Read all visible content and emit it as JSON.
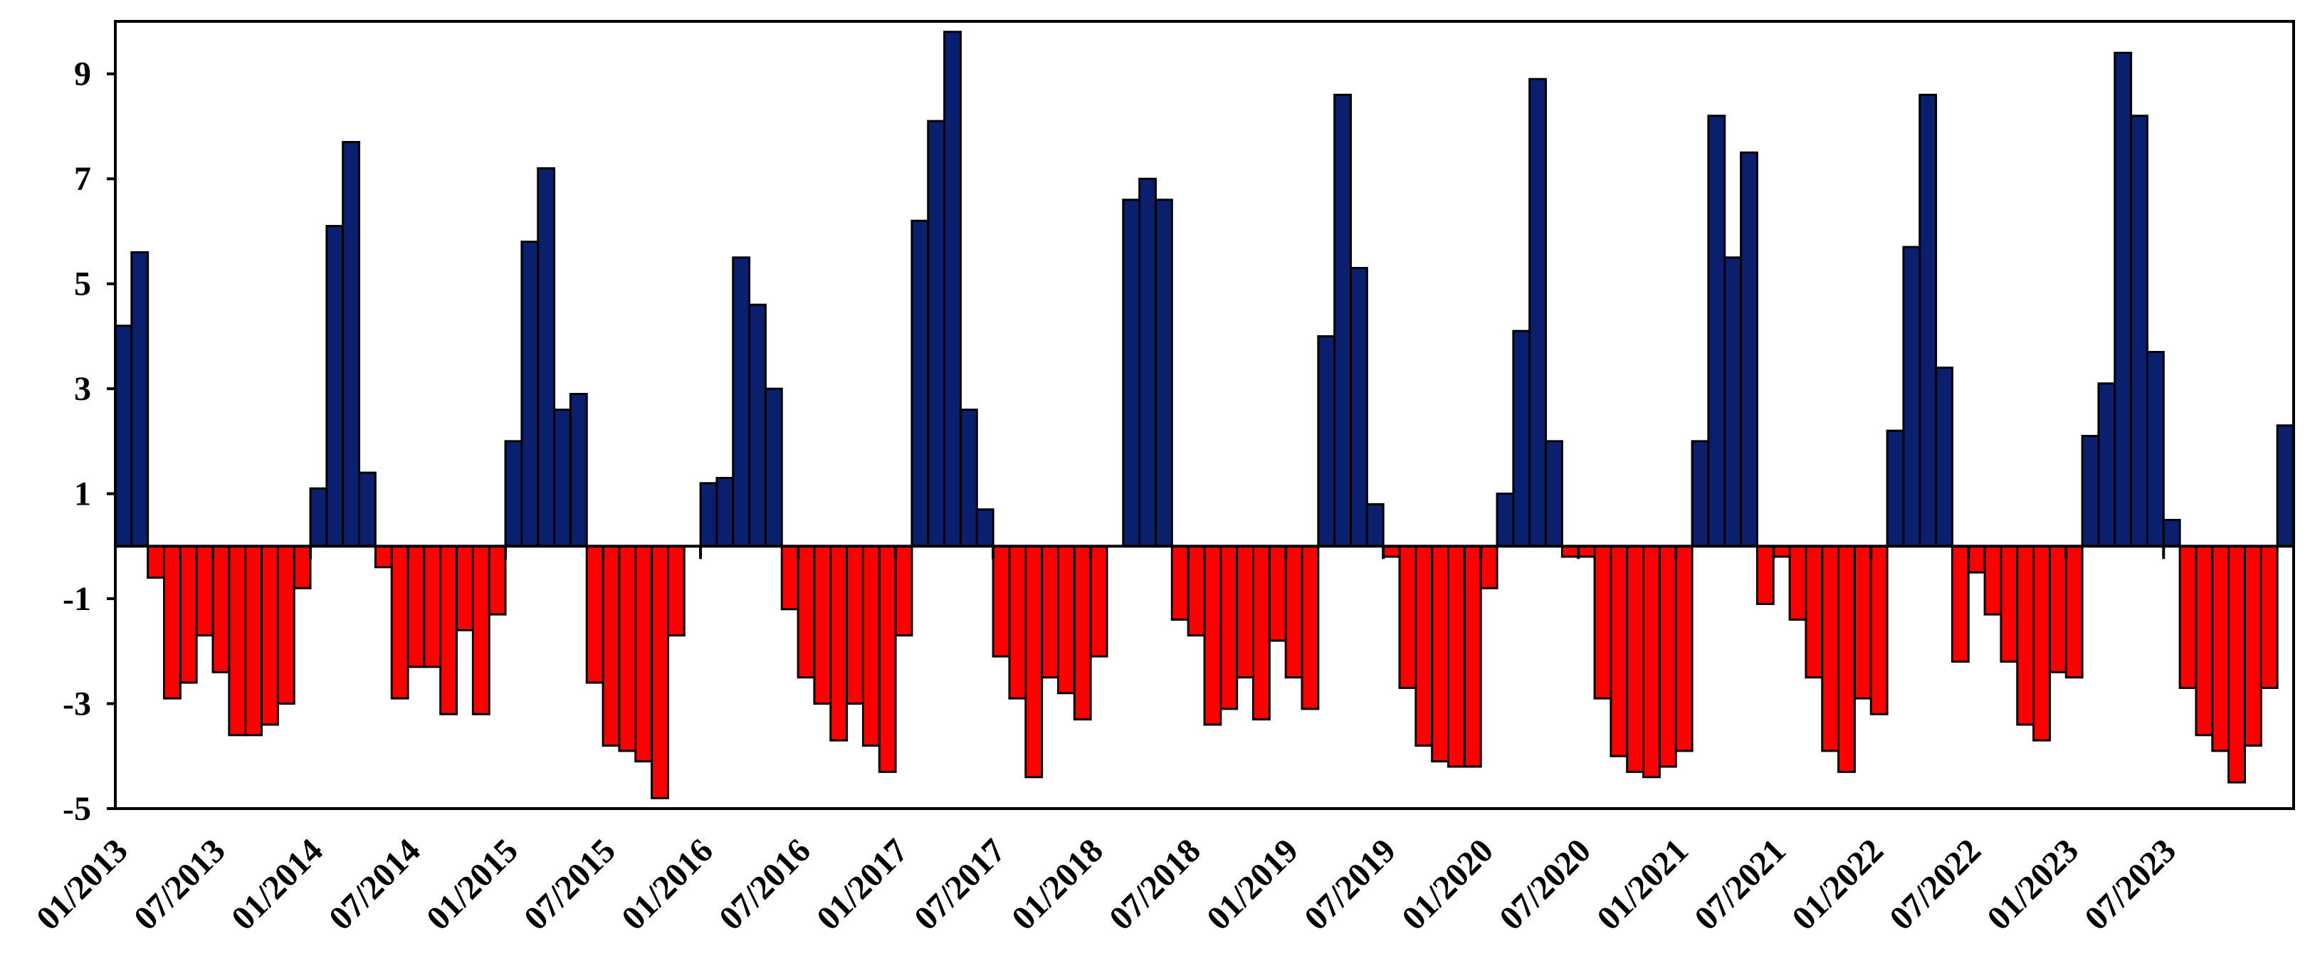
{
  "chart_data": {
    "type": "bar",
    "title": "",
    "xlabel": "",
    "ylabel": "",
    "ylim": [
      -5,
      10
    ],
    "y_ticks": [
      -5,
      -3,
      -1,
      1,
      3,
      5,
      7,
      9
    ],
    "x_tick_labels": [
      "01/2013",
      "07/2013",
      "01/2014",
      "07/2014",
      "01/2015",
      "07/2015",
      "01/2016",
      "07/2016",
      "01/2017",
      "07/2017",
      "01/2018",
      "07/2018",
      "01/2019",
      "07/2019",
      "01/2020",
      "07/2020",
      "01/2021",
      "07/2021",
      "01/2022",
      "07/2022",
      "01/2023",
      "07/2023"
    ],
    "start_month": "01/2013",
    "grid": false,
    "legend": "none",
    "colors": {
      "positive": "#0a1f6e",
      "negative": "#ff0000",
      "edge": "#000000"
    },
    "values": [
      4.2,
      5.6,
      -0.6,
      -2.9,
      -2.6,
      -1.7,
      -2.4,
      -3.6,
      -3.6,
      -3.4,
      -3.0,
      -0.8,
      1.1,
      6.1,
      7.7,
      1.4,
      -0.4,
      -2.9,
      -2.3,
      -2.3,
      -3.2,
      -1.6,
      -3.2,
      -1.3,
      2.0,
      5.8,
      7.2,
      2.6,
      2.9,
      -2.6,
      -3.8,
      -3.9,
      -4.1,
      -4.8,
      -1.7,
      0.0,
      1.2,
      1.3,
      5.5,
      4.6,
      3.0,
      -1.2,
      -2.5,
      -3.0,
      -3.7,
      -3.0,
      -3.8,
      -4.3,
      -1.7,
      6.2,
      8.1,
      9.8,
      2.6,
      0.7,
      -2.1,
      -2.9,
      -4.4,
      -2.5,
      -2.8,
      -3.3,
      -2.1,
      0.0,
      6.6,
      7.0,
      6.6,
      -1.4,
      -1.7,
      -3.4,
      -3.1,
      -2.5,
      -3.3,
      -1.8,
      -2.5,
      -3.1,
      4.0,
      8.6,
      5.3,
      0.8,
      -0.2,
      -2.7,
      -3.8,
      -4.1,
      -4.2,
      -4.2,
      -0.8,
      1.0,
      4.1,
      8.9,
      2.0,
      -0.2,
      -0.2,
      -2.9,
      -4.0,
      -4.3,
      -4.4,
      -4.2,
      -3.9,
      2.0,
      8.2,
      5.5,
      7.5,
      -1.1,
      -0.2,
      -1.4,
      -2.5,
      -3.9,
      -4.3,
      -2.9,
      -3.2,
      2.2,
      5.7,
      8.6,
      3.4,
      -2.2,
      -0.5,
      -1.3,
      -2.2,
      -3.4,
      -3.7,
      -2.4,
      -2.5,
      2.1,
      3.1,
      9.4,
      8.2,
      3.7,
      0.5,
      -2.7,
      -3.6,
      -3.9,
      -4.5,
      -3.8,
      -2.7,
      2.3
    ]
  }
}
